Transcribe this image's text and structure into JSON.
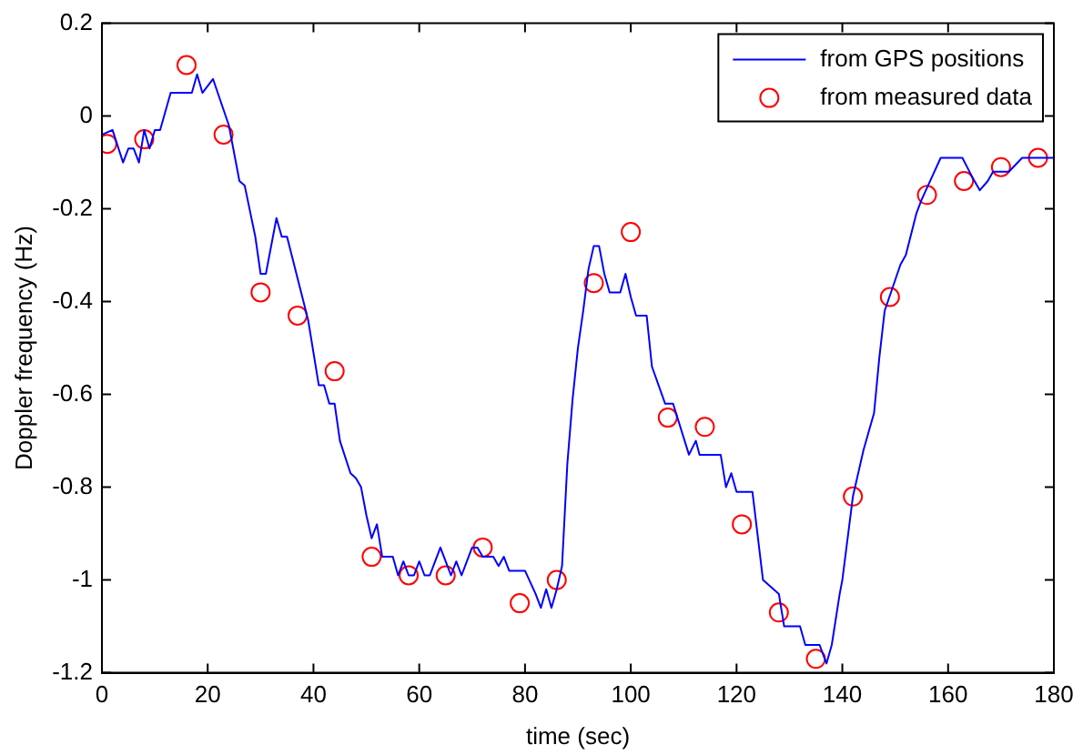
{
  "chart_data": {
    "type": "line",
    "xlabel": "time (sec)",
    "ylabel": "Doppler frequency (Hz)",
    "xlim": [
      0,
      180
    ],
    "xticks": [
      0,
      20,
      40,
      60,
      80,
      100,
      120,
      140,
      160,
      180
    ],
    "ylim": [
      -1.2,
      0.2
    ],
    "yticks": [
      -1.2,
      -1,
      -0.8,
      -0.6,
      -0.4,
      -0.2,
      0,
      0.2
    ],
    "grid": false,
    "legend": "top right",
    "series": [
      {
        "name": "from GPS positions",
        "color": "#0000ff",
        "marker": "none",
        "line_style": "solid",
        "x": [
          0,
          2,
          4,
          5,
          6,
          7,
          8,
          9,
          10,
          11,
          13,
          17,
          18,
          19,
          21,
          24,
          26,
          27,
          29,
          30,
          31,
          33,
          34,
          35,
          39,
          41,
          42,
          43,
          44,
          45,
          47,
          48,
          49,
          50,
          51,
          52,
          53,
          55,
          56,
          57,
          58,
          59,
          60,
          61,
          62,
          63,
          64,
          65,
          66,
          67,
          68,
          69,
          70,
          71,
          72,
          74,
          75,
          76,
          77,
          79,
          80,
          82,
          83,
          84,
          85,
          86,
          87,
          88,
          89,
          90,
          91,
          92,
          93,
          94,
          95,
          96,
          98,
          99,
          100,
          101,
          103,
          104,
          106.5,
          108,
          111,
          112.3,
          113,
          117,
          118,
          119,
          120,
          123,
          125,
          128,
          129,
          132,
          133,
          134.5,
          135.7,
          137,
          138,
          139.5,
          140,
          142,
          144,
          146,
          147,
          148,
          151,
          152,
          154,
          155,
          157,
          158.6,
          162.7,
          164.5,
          166,
          167.5,
          168.5,
          171.5,
          174,
          180
        ],
        "values": [
          -0.04,
          -0.03,
          -0.1,
          -0.07,
          -0.07,
          -0.1,
          -0.03,
          -0.07,
          -0.03,
          -0.03,
          0.05,
          0.05,
          0.09,
          0.05,
          0.08,
          -0.02,
          -0.14,
          -0.15,
          -0.26,
          -0.34,
          -0.34,
          -0.22,
          -0.26,
          -0.26,
          -0.44,
          -0.58,
          -0.58,
          -0.62,
          -0.62,
          -0.7,
          -0.77,
          -0.78,
          -0.8,
          -0.86,
          -0.91,
          -0.88,
          -0.95,
          -0.95,
          -0.99,
          -0.96,
          -0.99,
          -0.99,
          -0.96,
          -0.99,
          -0.99,
          -0.96,
          -0.93,
          -0.96,
          -0.99,
          -0.96,
          -0.99,
          -0.96,
          -0.93,
          -0.93,
          -0.95,
          -0.95,
          -0.97,
          -0.95,
          -0.98,
          -0.98,
          -0.98,
          -1.03,
          -1.06,
          -1.02,
          -1.06,
          -1.02,
          -0.97,
          -0.75,
          -0.61,
          -0.5,
          -0.42,
          -0.33,
          -0.28,
          -0.28,
          -0.34,
          -0.38,
          -0.38,
          -0.34,
          -0.39,
          -0.43,
          -0.43,
          -0.54,
          -0.62,
          -0.62,
          -0.73,
          -0.7,
          -0.73,
          -0.73,
          -0.8,
          -0.77,
          -0.81,
          -0.81,
          -1.0,
          -1.03,
          -1.1,
          -1.1,
          -1.14,
          -1.14,
          -1.14,
          -1.18,
          -1.14,
          -1.03,
          -1.0,
          -0.82,
          -0.72,
          -0.64,
          -0.52,
          -0.42,
          -0.32,
          -0.3,
          -0.21,
          -0.18,
          -0.13,
          -0.09,
          -0.09,
          -0.13,
          -0.16,
          -0.14,
          -0.12,
          -0.12,
          -0.09,
          -0.09
        ]
      },
      {
        "name": "from measured data",
        "type": "scatter",
        "color": "#ff0000",
        "marker": "circle",
        "x": [
          1,
          8,
          16,
          23,
          30,
          37,
          44,
          51,
          58,
          65,
          72,
          79,
          86,
          93,
          100,
          107,
          114,
          121,
          128,
          135,
          142,
          149,
          156,
          163,
          170,
          177
        ],
        "values": [
          -0.06,
          -0.05,
          0.11,
          -0.04,
          -0.38,
          -0.43,
          -0.55,
          -0.95,
          -0.99,
          -0.99,
          -0.93,
          -1.05,
          -1.0,
          -0.36,
          -0.25,
          -0.65,
          -0.67,
          -0.88,
          -1.07,
          -1.17,
          -0.82,
          -0.39,
          -0.17,
          -0.14,
          -0.11,
          -0.09
        ]
      }
    ]
  }
}
